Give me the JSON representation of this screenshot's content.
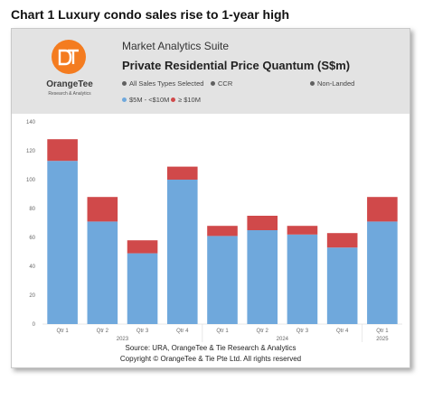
{
  "heading": "Chart 1 Luxury condo sales rise to 1-year high",
  "logo": {
    "name": "OrangeTee",
    "tagline": "Research & Analytics",
    "color": "#f47c20"
  },
  "suite_title": "Market Analytics Suite",
  "filters": [
    "All Sales Types Selected",
    "CCR",
    "Non-Landed"
  ],
  "footer": {
    "source": "Source: URA, OrangeTee & Tie Research & Analytics",
    "copyright": "Copyright © OrangeTee & Tie Pte Ltd. All rights reserved"
  },
  "colors": {
    "series1": "#6fa8dc",
    "series2": "#d0494a",
    "filter_dot": "#606060"
  },
  "chart_data": {
    "type": "bar",
    "stacked": true,
    "title": "Private Residential Price Quantum (S$m)",
    "categories": [
      "Qtr 1",
      "Qtr 2",
      "Qtr 3",
      "Qtr 4",
      "Qtr 1",
      "Qtr 2",
      "Qtr 3",
      "Qtr 4",
      "Qtr 1"
    ],
    "year_groups": [
      {
        "label": "2023",
        "start": 0,
        "end": 3
      },
      {
        "label": "2024",
        "start": 4,
        "end": 7
      },
      {
        "label": "2025",
        "start": 8,
        "end": 8
      }
    ],
    "series": [
      {
        "name": "$5M - <$10M",
        "values": [
          113,
          71,
          49,
          100,
          61,
          65,
          62,
          53,
          71
        ]
      },
      {
        "name": "≥ $10M",
        "values": [
          15,
          17,
          9,
          9,
          7,
          10,
          6,
          10,
          17
        ]
      }
    ],
    "ylim": [
      0,
      140
    ],
    "yticks": [
      0,
      20,
      40,
      60,
      80,
      100,
      120,
      140
    ],
    "grid": false,
    "legend": "top-left"
  }
}
